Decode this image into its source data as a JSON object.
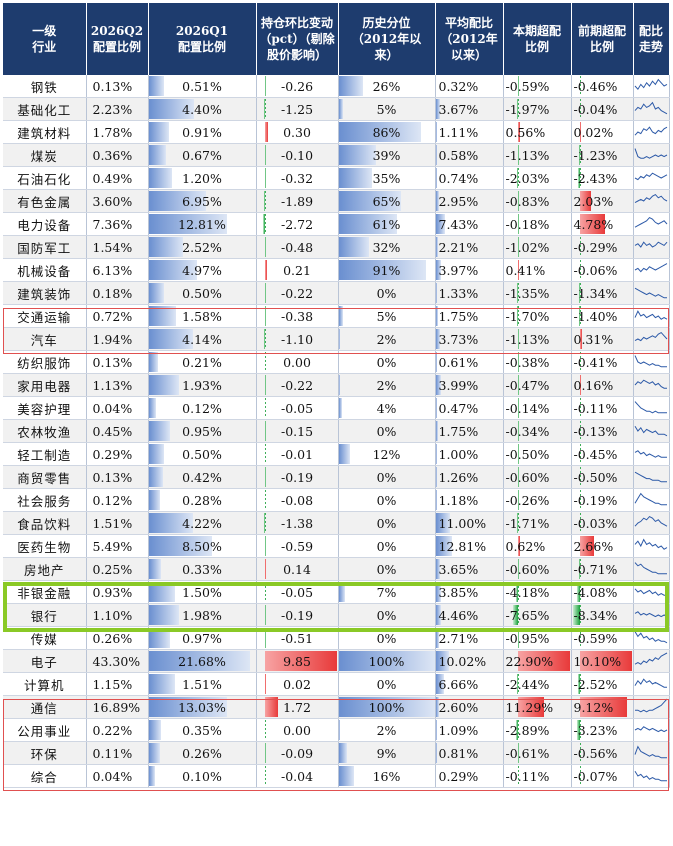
{
  "headers": [
    "一级\n行业",
    "2026Q2\n配置比例",
    "2026Q1\n配置比例",
    "持仓环比变动\n（pct）（剔除\n股价影响）",
    "历史分位\n（2012年以\n来）",
    "平均配比\n（2012年\n以来）",
    "本期超配\n比例",
    "前期超配\n比例",
    "配比\n走势"
  ],
  "rows": [
    {
      "industry": "钢铁",
      "q2": "0.13%",
      "q1": "0.51%",
      "change": "-0.26",
      "pctile": "26%",
      "avg": "0.32%",
      "over_now": "-0.59%",
      "over_prev": "-0.46%",
      "trend": [
        0.5,
        0.3,
        0.6,
        0.4,
        0.7,
        0.5,
        0.8,
        0.6,
        0.9,
        0.7,
        0.5,
        0.6
      ]
    },
    {
      "industry": "基础化工",
      "q2": "2.23%",
      "q1": "4.40%",
      "change": "-1.25",
      "pctile": "5%",
      "avg": "3.67%",
      "over_now": "-1.97%",
      "over_prev": "-0.04%",
      "trend": [
        0.4,
        0.6,
        0.5,
        0.8,
        0.6,
        0.7,
        0.9,
        0.5,
        0.6,
        0.4,
        0.3,
        0.2
      ]
    },
    {
      "industry": "建筑材料",
      "q2": "1.78%",
      "q1": "0.91%",
      "change": "0.30",
      "pctile": "86%",
      "avg": "1.11%",
      "over_now": "0.56%",
      "over_prev": "0.02%",
      "trend": [
        0.3,
        0.5,
        0.4,
        0.7,
        0.6,
        0.8,
        0.5,
        0.4,
        0.6,
        0.5,
        0.7,
        0.8
      ]
    },
    {
      "industry": "煤炭",
      "q2": "0.36%",
      "q1": "0.67%",
      "change": "-0.10",
      "pctile": "39%",
      "avg": "0.58%",
      "over_now": "-1.13%",
      "over_prev": "-1.23%",
      "trend": [
        0.9,
        0.4,
        0.3,
        0.3,
        0.4,
        0.3,
        0.4,
        0.5,
        0.4,
        0.5,
        0.4,
        0.5
      ]
    },
    {
      "industry": "石油石化",
      "q2": "0.49%",
      "q1": "1.20%",
      "change": "-0.32",
      "pctile": "35%",
      "avg": "0.74%",
      "over_now": "-2.03%",
      "over_prev": "-2.43%",
      "trend": [
        0.5,
        0.4,
        0.6,
        0.5,
        0.7,
        0.6,
        0.8,
        0.7,
        0.6,
        0.5,
        0.6,
        0.7
      ]
    },
    {
      "industry": "有色金属",
      "q2": "3.60%",
      "q1": "6.95%",
      "change": "-1.89",
      "pctile": "65%",
      "avg": "2.95%",
      "over_now": "-0.83%",
      "over_prev": "2.03%",
      "trend": [
        0.4,
        0.5,
        0.6,
        0.5,
        0.7,
        0.6,
        0.8,
        0.9,
        0.7,
        0.8,
        0.6,
        0.5
      ]
    },
    {
      "industry": "电力设备",
      "q2": "7.36%",
      "q1": "12.81%",
      "change": "-2.72",
      "pctile": "61%",
      "avg": "7.43%",
      "over_now": "-0.18%",
      "over_prev": "4.78%",
      "trend": [
        0.3,
        0.4,
        0.5,
        0.6,
        0.7,
        0.9,
        0.8,
        0.6,
        0.5,
        0.6,
        0.7,
        0.5
      ]
    },
    {
      "industry": "国防军工",
      "q2": "1.54%",
      "q1": "2.52%",
      "change": "-0.48",
      "pctile": "32%",
      "avg": "2.21%",
      "over_now": "-1.02%",
      "over_prev": "-0.29%",
      "trend": [
        0.6,
        0.7,
        0.5,
        0.8,
        0.6,
        0.7,
        0.5,
        0.6,
        0.8,
        0.7,
        0.6,
        0.8
      ]
    },
    {
      "industry": "机械设备",
      "q2": "6.13%",
      "q1": "4.97%",
      "change": "0.21",
      "pctile": "91%",
      "avg": "3.97%",
      "over_now": "0.41%",
      "over_prev": "-0.06%",
      "trend": [
        0.5,
        0.6,
        0.4,
        0.6,
        0.5,
        0.7,
        0.6,
        0.5,
        0.6,
        0.7,
        0.8,
        0.9
      ]
    },
    {
      "industry": "建筑装饰",
      "q2": "0.18%",
      "q1": "0.50%",
      "change": "-0.22",
      "pctile": "0%",
      "avg": "1.33%",
      "over_now": "-1.35%",
      "over_prev": "-1.34%",
      "trend": [
        0.8,
        0.7,
        0.6,
        0.5,
        0.4,
        0.5,
        0.4,
        0.3,
        0.4,
        0.3,
        0.2,
        0.2
      ]
    },
    {
      "industry": "交通运输",
      "q2": "0.72%",
      "q1": "1.58%",
      "change": "-0.38",
      "pctile": "5%",
      "avg": "1.75%",
      "over_now": "-1.70%",
      "over_prev": "-1.40%",
      "trend": [
        0.4,
        0.8,
        0.5,
        0.6,
        0.4,
        0.5,
        0.6,
        0.4,
        0.5,
        0.3,
        0.4,
        0.3
      ]
    },
    {
      "industry": "汽车",
      "q2": "1.94%",
      "q1": "4.14%",
      "change": "-1.10",
      "pctile": "2%",
      "avg": "3.73%",
      "over_now": "-1.13%",
      "over_prev": "0.31%",
      "trend": [
        0.4,
        0.5,
        0.4,
        0.6,
        0.5,
        0.6,
        0.7,
        0.6,
        0.8,
        0.9,
        0.7,
        0.5
      ]
    },
    {
      "industry": "纺织服饰",
      "q2": "0.13%",
      "q1": "0.21%",
      "change": "0.00",
      "pctile": "0%",
      "avg": "0.61%",
      "over_now": "-0.38%",
      "over_prev": "-0.41%",
      "trend": [
        0.9,
        0.5,
        0.4,
        0.5,
        0.4,
        0.3,
        0.4,
        0.3,
        0.3,
        0.2,
        0.2,
        0.2
      ]
    },
    {
      "industry": "家用电器",
      "q2": "1.13%",
      "q1": "1.93%",
      "change": "-0.22",
      "pctile": "2%",
      "avg": "3.99%",
      "over_now": "-0.47%",
      "over_prev": "0.16%",
      "trend": [
        0.5,
        0.7,
        0.6,
        0.8,
        0.7,
        0.6,
        0.7,
        0.5,
        0.6,
        0.4,
        0.3,
        0.3
      ]
    },
    {
      "industry": "美容护理",
      "q2": "0.04%",
      "q1": "0.12%",
      "change": "-0.05",
      "pctile": "4%",
      "avg": "0.47%",
      "over_now": "-0.14%",
      "over_prev": "-0.11%",
      "trend": [
        0.9,
        0.7,
        0.5,
        0.4,
        0.3,
        0.3,
        0.2,
        0.3,
        0.2,
        0.2,
        0.2,
        0.2
      ]
    },
    {
      "industry": "农林牧渔",
      "q2": "0.45%",
      "q1": "0.95%",
      "change": "-0.15",
      "pctile": "0%",
      "avg": "1.75%",
      "over_now": "-0.34%",
      "over_prev": "-0.13%",
      "trend": [
        0.8,
        0.5,
        0.7,
        0.4,
        0.6,
        0.5,
        0.4,
        0.5,
        0.3,
        0.3,
        0.3,
        0.2
      ]
    },
    {
      "industry": "轻工制造",
      "q2": "0.29%",
      "q1": "0.50%",
      "change": "-0.01",
      "pctile": "12%",
      "avg": "1.00%",
      "over_now": "-0.50%",
      "over_prev": "-0.45%",
      "trend": [
        0.6,
        0.7,
        0.5,
        0.6,
        0.4,
        0.5,
        0.4,
        0.3,
        0.4,
        0.3,
        0.3,
        0.3
      ]
    },
    {
      "industry": "商贸零售",
      "q2": "0.13%",
      "q1": "0.42%",
      "change": "-0.19",
      "pctile": "0%",
      "avg": "1.26%",
      "over_now": "-0.60%",
      "over_prev": "-0.50%",
      "trend": [
        0.8,
        0.7,
        0.6,
        0.5,
        0.4,
        0.4,
        0.3,
        0.3,
        0.3,
        0.2,
        0.2,
        0.2
      ]
    },
    {
      "industry": "社会服务",
      "q2": "0.12%",
      "q1": "0.28%",
      "change": "-0.08",
      "pctile": "0%",
      "avg": "1.18%",
      "over_now": "-0.26%",
      "over_prev": "-0.19%",
      "trend": [
        0.3,
        0.6,
        0.9,
        0.7,
        0.6,
        0.5,
        0.4,
        0.3,
        0.3,
        0.2,
        0.2,
        0.2
      ]
    },
    {
      "industry": "食品饮料",
      "q2": "1.51%",
      "q1": "4.22%",
      "change": "-1.38",
      "pctile": "0%",
      "avg": "11.00%",
      "over_now": "-1.71%",
      "over_prev": "-0.03%",
      "trend": [
        0.3,
        0.5,
        0.6,
        0.8,
        0.7,
        0.9,
        0.8,
        0.6,
        0.7,
        0.5,
        0.4,
        0.3
      ]
    },
    {
      "industry": "医药生物",
      "q2": "5.49%",
      "q1": "8.50%",
      "change": "-0.59",
      "pctile": "0%",
      "avg": "12.81%",
      "over_now": "0.62%",
      "over_prev": "2.66%",
      "trend": [
        0.6,
        0.8,
        0.5,
        0.9,
        0.6,
        0.7,
        0.5,
        0.6,
        0.4,
        0.5,
        0.3,
        0.4
      ]
    },
    {
      "industry": "房地产",
      "q2": "0.25%",
      "q1": "0.33%",
      "change": "0.14",
      "pctile": "0%",
      "avg": "3.65%",
      "over_now": "-0.60%",
      "over_prev": "-0.71%",
      "trend": [
        0.9,
        0.7,
        0.8,
        0.6,
        0.5,
        0.4,
        0.3,
        0.3,
        0.2,
        0.2,
        0.2,
        0.2
      ]
    },
    {
      "industry": "非银金融",
      "q2": "0.93%",
      "q1": "1.50%",
      "change": "-0.05",
      "pctile": "7%",
      "avg": "3.85%",
      "over_now": "-4.18%",
      "over_prev": "-4.08%",
      "trend": [
        0.7,
        0.5,
        0.6,
        0.4,
        0.5,
        0.6,
        0.4,
        0.5,
        0.3,
        0.4,
        0.3,
        0.3
      ]
    },
    {
      "industry": "银行",
      "q2": "1.10%",
      "q1": "1.98%",
      "change": "-0.19",
      "pctile": "0%",
      "avg": "4.46%",
      "over_now": "-7.65%",
      "over_prev": "-8.34%",
      "trend": [
        0.6,
        0.7,
        0.5,
        0.6,
        0.5,
        0.6,
        0.5,
        0.4,
        0.5,
        0.4,
        0.5,
        0.4
      ]
    },
    {
      "industry": "传媒",
      "q2": "0.26%",
      "q1": "0.97%",
      "change": "-0.51",
      "pctile": "0%",
      "avg": "2.71%",
      "over_now": "-0.95%",
      "over_prev": "-0.59%",
      "trend": [
        0.9,
        0.6,
        0.8,
        0.5,
        0.6,
        0.4,
        0.5,
        0.3,
        0.4,
        0.3,
        0.3,
        0.2
      ]
    },
    {
      "industry": "电子",
      "q2": "43.30%",
      "q1": "21.68%",
      "change": "9.85",
      "pctile": "100%",
      "avg": "10.02%",
      "over_now": "22.90%",
      "over_prev": "10.10%",
      "trend": [
        0.3,
        0.4,
        0.3,
        0.5,
        0.4,
        0.6,
        0.5,
        0.7,
        0.6,
        0.8,
        0.9,
        1.0
      ]
    },
    {
      "industry": "计算机",
      "q2": "1.15%",
      "q1": "1.51%",
      "change": "0.02",
      "pctile": "0%",
      "avg": "6.66%",
      "over_now": "-2.44%",
      "over_prev": "-2.52%",
      "trend": [
        0.4,
        0.7,
        0.5,
        0.8,
        0.6,
        0.7,
        0.5,
        0.6,
        0.5,
        0.4,
        0.3,
        0.3
      ]
    },
    {
      "industry": "通信",
      "q2": "16.89%",
      "q1": "13.03%",
      "change": "1.72",
      "pctile": "100%",
      "avg": "2.60%",
      "over_now": "11.29%",
      "over_prev": "9.12%",
      "trend": [
        0.3,
        0.3,
        0.2,
        0.3,
        0.2,
        0.3,
        0.3,
        0.4,
        0.5,
        0.6,
        0.8,
        1.0
      ]
    },
    {
      "industry": "公用事业",
      "q2": "0.22%",
      "q1": "0.35%",
      "change": "0.00",
      "pctile": "2%",
      "avg": "1.09%",
      "over_now": "-2.89%",
      "over_prev": "-3.23%",
      "trend": [
        0.5,
        0.6,
        0.5,
        0.7,
        0.6,
        0.5,
        0.6,
        0.5,
        0.4,
        0.5,
        0.4,
        0.5
      ]
    },
    {
      "industry": "环保",
      "q2": "0.11%",
      "q1": "0.26%",
      "change": "-0.09",
      "pctile": "9%",
      "avg": "0.81%",
      "over_now": "-0.61%",
      "over_prev": "-0.56%",
      "trend": [
        0.4,
        0.9,
        0.6,
        0.5,
        0.4,
        0.3,
        0.4,
        0.3,
        0.3,
        0.2,
        0.2,
        0.2
      ]
    },
    {
      "industry": "综合",
      "q2": "0.04%",
      "q1": "0.10%",
      "change": "-0.04",
      "pctile": "16%",
      "avg": "0.29%",
      "over_now": "-0.11%",
      "over_prev": "-0.07%",
      "trend": [
        0.8,
        0.5,
        0.6,
        0.4,
        0.5,
        0.3,
        0.4,
        0.3,
        0.3,
        0.2,
        0.2,
        0.2
      ]
    }
  ],
  "highlights": [
    {
      "from": 7,
      "to": 8,
      "color": "#e05050"
    },
    {
      "from": 19,
      "to": 20,
      "color": "#8ac926"
    },
    {
      "from": 24,
      "to": 27,
      "color": "#e05050"
    }
  ],
  "colors": {
    "header": "#1e3c6e",
    "bar_blue": "#6a8fd0",
    "bar_green": "#1aa13c",
    "bar_red": "#e83a3a",
    "trend_line": "#2d5aa8"
  }
}
